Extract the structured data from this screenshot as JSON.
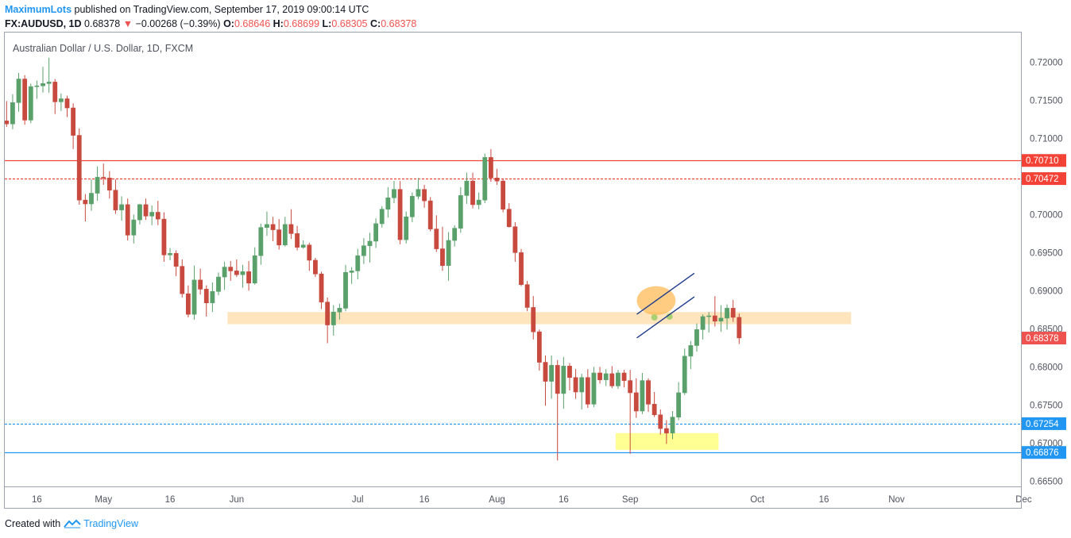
{
  "header": {
    "user": "MaximumLots",
    "published_text": "published on TradingView.com, September 17, 2019 09:00:14 UTC"
  },
  "ohlc": {
    "symbol": "FX:AUDUSD, 1D",
    "last": "0.68378",
    "change_arrow": "▼",
    "change": "−0.00268 (−0.39%)",
    "o_label": "O:",
    "o_value": "0.68646",
    "h_label": "H:",
    "h_value": "0.68699",
    "l_label": "L:",
    "l_value": "0.68305",
    "c_label": "C:",
    "c_value": "0.68378"
  },
  "chart_title": "Australian Dollar / U.S. Dollar, 1D, FXCM",
  "footer": {
    "created_with": "Created with",
    "brand": "TradingView"
  },
  "colors": {
    "up": "#26a69a",
    "up_candle": "#5aa06b",
    "down": "#ef5350",
    "down_candle": "#c84a3f",
    "resistance": "#f44336",
    "support": "#2196f3",
    "zone": "#ffe0b2",
    "target_zone": "#ffff80",
    "channel": "#1e3c8c",
    "highlight": "#ffb74d"
  },
  "chart_data": {
    "type": "candlestick",
    "title": "Australian Dollar / U.S. Dollar, 1D, FXCM",
    "ylim": [
      0.6643,
      0.7239
    ],
    "y_ticks": [
      "0.72000",
      "0.71500",
      "0.71000",
      "0.70000",
      "0.69500",
      "0.69000",
      "0.68500",
      "0.68000",
      "0.67500",
      "0.67000",
      "0.66500"
    ],
    "x_ticks": [
      {
        "label": "16",
        "bar": 5
      },
      {
        "label": "May",
        "bar": 16
      },
      {
        "label": "16",
        "bar": 27
      },
      {
        "label": "Jun",
        "bar": 38
      },
      {
        "label": "Jul",
        "bar": 58
      },
      {
        "label": "16",
        "bar": 69
      },
      {
        "label": "Aug",
        "bar": 81
      },
      {
        "label": "16",
        "bar": 92
      },
      {
        "label": "Sep",
        "bar": 103
      },
      {
        "label": "Oct",
        "bar": 124
      },
      {
        "label": "16",
        "bar": 135
      },
      {
        "label": "Nov",
        "bar": 147
      },
      {
        "label": "Dec",
        "bar": 168
      }
    ],
    "candles": [
      [
        0.7123,
        0.7149,
        0.7115,
        0.7119
      ],
      [
        0.7119,
        0.7158,
        0.7112,
        0.7147
      ],
      [
        0.7147,
        0.7186,
        0.7135,
        0.7178
      ],
      [
        0.7178,
        0.7183,
        0.7118,
        0.7124
      ],
      [
        0.7124,
        0.7172,
        0.712,
        0.7168
      ],
      [
        0.7168,
        0.7176,
        0.7152,
        0.7169
      ],
      [
        0.7169,
        0.7194,
        0.716,
        0.7172
      ],
      [
        0.7172,
        0.7206,
        0.716,
        0.7174
      ],
      [
        0.7174,
        0.7178,
        0.7132,
        0.7148
      ],
      [
        0.7148,
        0.7159,
        0.7136,
        0.7152
      ],
      [
        0.7152,
        0.7156,
        0.7128,
        0.714
      ],
      [
        0.714,
        0.7146,
        0.7086,
        0.7104
      ],
      [
        0.7104,
        0.7113,
        0.7013,
        0.7019
      ],
      [
        0.7019,
        0.7027,
        0.6991,
        0.7014
      ],
      [
        0.7014,
        0.7046,
        0.7005,
        0.7028
      ],
      [
        0.7028,
        0.7063,
        0.7018,
        0.7049
      ],
      [
        0.7049,
        0.7067,
        0.7039,
        0.7048
      ],
      [
        0.7048,
        0.7057,
        0.7021,
        0.7032
      ],
      [
        0.7032,
        0.7046,
        0.7001,
        0.7006
      ],
      [
        0.7006,
        0.7024,
        0.6992,
        0.7013
      ],
      [
        0.7013,
        0.7021,
        0.6966,
        0.6973
      ],
      [
        0.6973,
        0.7,
        0.6962,
        0.6993
      ],
      [
        0.6993,
        0.7014,
        0.6987,
        0.7013
      ],
      [
        0.7013,
        0.7021,
        0.6993,
        0.6998
      ],
      [
        0.6998,
        0.7012,
        0.6986,
        0.7003
      ],
      [
        0.7003,
        0.7018,
        0.6986,
        0.6994
      ],
      [
        0.6994,
        0.7003,
        0.6938,
        0.6947
      ],
      [
        0.6947,
        0.6956,
        0.694,
        0.6949
      ],
      [
        0.6949,
        0.6953,
        0.6919,
        0.6932
      ],
      [
        0.6932,
        0.6941,
        0.6891,
        0.6896
      ],
      [
        0.6896,
        0.6907,
        0.6865,
        0.6869
      ],
      [
        0.6869,
        0.6933,
        0.6862,
        0.6914
      ],
      [
        0.6914,
        0.6929,
        0.6895,
        0.6902
      ],
      [
        0.6902,
        0.6907,
        0.6866,
        0.6884
      ],
      [
        0.6884,
        0.6911,
        0.6872,
        0.6899
      ],
      [
        0.6899,
        0.6924,
        0.6894,
        0.6918
      ],
      [
        0.6918,
        0.6938,
        0.6901,
        0.6931
      ],
      [
        0.6931,
        0.6939,
        0.6913,
        0.6926
      ],
      [
        0.6926,
        0.6941,
        0.6918,
        0.6921
      ],
      [
        0.6921,
        0.6934,
        0.6904,
        0.6925
      ],
      [
        0.6925,
        0.6939,
        0.69,
        0.691
      ],
      [
        0.691,
        0.6957,
        0.6908,
        0.6946
      ],
      [
        0.6946,
        0.6988,
        0.6934,
        0.6983
      ],
      [
        0.6983,
        0.7004,
        0.6972,
        0.6987
      ],
      [
        0.6987,
        0.6997,
        0.6965,
        0.698
      ],
      [
        0.698,
        0.6994,
        0.6954,
        0.696
      ],
      [
        0.696,
        0.6997,
        0.6958,
        0.6987
      ],
      [
        0.6987,
        0.7007,
        0.6968,
        0.6975
      ],
      [
        0.6975,
        0.6985,
        0.6953,
        0.6957
      ],
      [
        0.6957,
        0.6966,
        0.6955,
        0.696
      ],
      [
        0.696,
        0.6963,
        0.6926,
        0.694
      ],
      [
        0.694,
        0.6943,
        0.6918,
        0.6922
      ],
      [
        0.6922,
        0.6925,
        0.6876,
        0.6885
      ],
      [
        0.6885,
        0.6891,
        0.6831,
        0.6855
      ],
      [
        0.6855,
        0.6881,
        0.6841,
        0.6872
      ],
      [
        0.6872,
        0.6883,
        0.6862,
        0.6877
      ],
      [
        0.6877,
        0.6934,
        0.6873,
        0.6924
      ],
      [
        0.6924,
        0.6931,
        0.6909,
        0.6926
      ],
      [
        0.6926,
        0.6955,
        0.6915,
        0.6946
      ],
      [
        0.6946,
        0.6969,
        0.6935,
        0.6959
      ],
      [
        0.6959,
        0.6976,
        0.6937,
        0.6965
      ],
      [
        0.6965,
        0.6995,
        0.6956,
        0.6988
      ],
      [
        0.6988,
        0.7011,
        0.6983,
        0.7007
      ],
      [
        0.7007,
        0.7036,
        0.6996,
        0.7022
      ],
      [
        0.7022,
        0.7044,
        0.7015,
        0.7033
      ],
      [
        0.7033,
        0.7044,
        0.6961,
        0.6967
      ],
      [
        0.6967,
        0.7004,
        0.6962,
        0.6997
      ],
      [
        0.6997,
        0.7029,
        0.699,
        0.7024
      ],
      [
        0.7024,
        0.7048,
        0.702,
        0.7033
      ],
      [
        0.7033,
        0.7039,
        0.7009,
        0.7018
      ],
      [
        0.7018,
        0.7023,
        0.6978,
        0.6981
      ],
      [
        0.6981,
        0.6999,
        0.6951,
        0.6955
      ],
      [
        0.6955,
        0.6984,
        0.6926,
        0.6933
      ],
      [
        0.6933,
        0.6977,
        0.6913,
        0.6966
      ],
      [
        0.6966,
        0.6986,
        0.6958,
        0.6982
      ],
      [
        0.6982,
        0.7036,
        0.6976,
        0.7025
      ],
      [
        0.7025,
        0.7055,
        0.7014,
        0.7044
      ],
      [
        0.7044,
        0.7055,
        0.7008,
        0.7013
      ],
      [
        0.7013,
        0.7029,
        0.7007,
        0.7019
      ],
      [
        0.7019,
        0.708,
        0.7015,
        0.7075
      ],
      [
        0.7075,
        0.7086,
        0.7043,
        0.7048
      ],
      [
        0.7048,
        0.706,
        0.7039,
        0.7044
      ],
      [
        0.7044,
        0.7047,
        0.7003,
        0.7007
      ],
      [
        0.7007,
        0.7015,
        0.6983,
        0.6984
      ],
      [
        0.6984,
        0.699,
        0.6938,
        0.695
      ],
      [
        0.695,
        0.6955,
        0.6906,
        0.6908
      ],
      [
        0.6908,
        0.6913,
        0.6873,
        0.6878
      ],
      [
        0.6878,
        0.6893,
        0.6836,
        0.6846
      ],
      [
        0.6846,
        0.6849,
        0.6795,
        0.6806
      ],
      [
        0.6806,
        0.6815,
        0.6749,
        0.6781
      ],
      [
        0.6781,
        0.6815,
        0.6758,
        0.6802
      ],
      [
        0.6802,
        0.6809,
        0.6677,
        0.6765
      ],
      [
        0.6765,
        0.6813,
        0.6745,
        0.6801
      ],
      [
        0.6801,
        0.6805,
        0.6769,
        0.6786
      ],
      [
        0.6786,
        0.6797,
        0.6758,
        0.6767
      ],
      [
        0.6767,
        0.6791,
        0.6744,
        0.6786
      ],
      [
        0.6786,
        0.6797,
        0.6746,
        0.6751
      ],
      [
        0.6751,
        0.68,
        0.6747,
        0.6792
      ],
      [
        0.6792,
        0.68,
        0.6778,
        0.6783
      ],
      [
        0.6783,
        0.6797,
        0.6775,
        0.6791
      ],
      [
        0.6791,
        0.6801,
        0.6772,
        0.6775
      ],
      [
        0.6775,
        0.6796,
        0.6771,
        0.6792
      ],
      [
        0.6792,
        0.6796,
        0.6773,
        0.6782
      ],
      [
        0.6782,
        0.6796,
        0.6686,
        0.6766
      ],
      [
        0.6766,
        0.6785,
        0.6733,
        0.6742
      ],
      [
        0.6742,
        0.6792,
        0.6738,
        0.6782
      ],
      [
        0.6782,
        0.6785,
        0.6741,
        0.6751
      ],
      [
        0.6751,
        0.6767,
        0.6734,
        0.6737
      ],
      [
        0.6737,
        0.6744,
        0.6711,
        0.6719
      ],
      [
        0.6719,
        0.673,
        0.6699,
        0.6713
      ],
      [
        0.6713,
        0.6742,
        0.6705,
        0.6734
      ],
      [
        0.6734,
        0.678,
        0.673,
        0.6766
      ],
      [
        0.6766,
        0.6824,
        0.6763,
        0.6814
      ],
      [
        0.6814,
        0.6834,
        0.6797,
        0.6828
      ],
      [
        0.6828,
        0.6857,
        0.682,
        0.6849
      ],
      [
        0.6849,
        0.6869,
        0.6836,
        0.6866
      ],
      [
        0.6866,
        0.6872,
        0.6845,
        0.6867
      ],
      [
        0.6867,
        0.6893,
        0.6853,
        0.686
      ],
      [
        0.686,
        0.6881,
        0.6846,
        0.6864
      ],
      [
        0.6864,
        0.6882,
        0.6849,
        0.6877
      ],
      [
        0.6877,
        0.6888,
        0.6859,
        0.6865
      ],
      [
        0.6865,
        0.687,
        0.683,
        0.6838
      ]
    ],
    "horizontal_levels": [
      {
        "price": 0.7071,
        "label": "0.70710",
        "style": "solid",
        "color": "#f44336"
      },
      {
        "price": 0.70472,
        "label": "0.70472",
        "style": "dashed",
        "color": "#f44336"
      },
      {
        "price": 0.67254,
        "label": "0.67254",
        "style": "dashed",
        "color": "#2196f3"
      },
      {
        "price": 0.66876,
        "label": "0.66876",
        "style": "solid",
        "color": "#2196f3"
      }
    ],
    "last_price": {
      "price": 0.68378,
      "label": "0.68378",
      "color": "#ef5350"
    },
    "zones": [
      {
        "name": "support-resistance-zone",
        "from_bar": 36.5,
        "to_bar": 139.5,
        "price_top": 0.6872,
        "price_bottom": 0.6856,
        "color": "#ffe0b2"
      },
      {
        "name": "target-zone",
        "from_bar": 100.6,
        "to_bar": 117.6,
        "price_top": 0.6713,
        "price_bottom": 0.6691,
        "color": "#ffff80"
      }
    ],
    "channel_lines": [
      {
        "from_bar": 104.1,
        "from_price": 0.6869,
        "to_bar": 113.6,
        "to_price": 0.6923
      },
      {
        "from_bar": 104.1,
        "from_price": 0.6838,
        "to_bar": 113.6,
        "to_price": 0.6892
      }
    ],
    "highlight_ellipse": {
      "center_bar": 107.3,
      "center_price": 0.6887,
      "radius_bars": 3.2,
      "radius_price": 0.0019,
      "color": "#ffb74d"
    },
    "flag_markers": [
      {
        "bar": 107.0,
        "price": 0.6865
      },
      {
        "bar": 109.5,
        "price": 0.6866
      }
    ]
  }
}
